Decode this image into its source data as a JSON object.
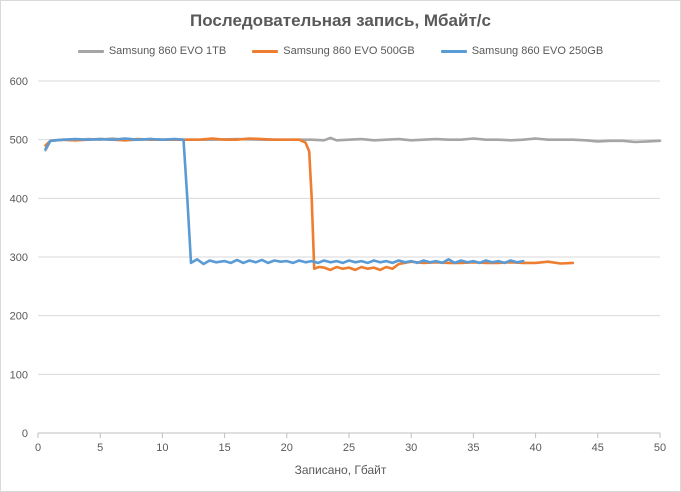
{
  "chart_data": {
    "type": "line",
    "title": "Последовательная запись, Мбайт/с",
    "xlabel": "Записано, Гбайт",
    "ylabel": "",
    "xlim": [
      0,
      50
    ],
    "ylim": [
      0,
      600
    ],
    "x_ticks": [
      0,
      5,
      10,
      15,
      20,
      25,
      30,
      35,
      40,
      45,
      50
    ],
    "y_ticks": [
      0,
      100,
      200,
      300,
      400,
      500,
      600
    ],
    "grid": "horizontal",
    "legend_position": "top",
    "series": [
      {
        "name": "Samsung 860 EVO 1TB",
        "color": "#a5a5a5",
        "points": [
          [
            0.6,
            482
          ],
          [
            1,
            498
          ],
          [
            2,
            500
          ],
          [
            3,
            499
          ],
          [
            4,
            501
          ],
          [
            5,
            500
          ],
          [
            6,
            502
          ],
          [
            7,
            499
          ],
          [
            8,
            500
          ],
          [
            9,
            501
          ],
          [
            10,
            500
          ],
          [
            11,
            500
          ],
          [
            12,
            500
          ],
          [
            14,
            500
          ],
          [
            16,
            501
          ],
          [
            18,
            500
          ],
          [
            20,
            500
          ],
          [
            22,
            500
          ],
          [
            23,
            499
          ],
          [
            23.5,
            503
          ],
          [
            24,
            499
          ],
          [
            25,
            500
          ],
          [
            26,
            501
          ],
          [
            27,
            499
          ],
          [
            28,
            500
          ],
          [
            29,
            501
          ],
          [
            30,
            499
          ],
          [
            31,
            500
          ],
          [
            32,
            501
          ],
          [
            33,
            500
          ],
          [
            34,
            500
          ],
          [
            35,
            502
          ],
          [
            36,
            500
          ],
          [
            37,
            500
          ],
          [
            38,
            499
          ],
          [
            39,
            500
          ],
          [
            40,
            502
          ],
          [
            41,
            500
          ],
          [
            42,
            500
          ],
          [
            43,
            500
          ],
          [
            44,
            499
          ],
          [
            45,
            497
          ],
          [
            46,
            498
          ],
          [
            47,
            498
          ],
          [
            48,
            496
          ],
          [
            49,
            497
          ],
          [
            50,
            498
          ]
        ]
      },
      {
        "name": "Samsung 860 EVO 500GB",
        "color": "#ed7d31",
        "points": [
          [
            0.6,
            490
          ],
          [
            1,
            498
          ],
          [
            2,
            500
          ],
          [
            3,
            499
          ],
          [
            4,
            500
          ],
          [
            5,
            501
          ],
          [
            6,
            500
          ],
          [
            7,
            499
          ],
          [
            8,
            501
          ],
          [
            9,
            500
          ],
          [
            10,
            500
          ],
          [
            11,
            500
          ],
          [
            12,
            500
          ],
          [
            13,
            500
          ],
          [
            14,
            502
          ],
          [
            15,
            500
          ],
          [
            16,
            500
          ],
          [
            17,
            502
          ],
          [
            18,
            501
          ],
          [
            19,
            500
          ],
          [
            20,
            500
          ],
          [
            21,
            500
          ],
          [
            21.5,
            495
          ],
          [
            21.8,
            480
          ],
          [
            22,
            400
          ],
          [
            22.2,
            280
          ],
          [
            22.6,
            283
          ],
          [
            23,
            282
          ],
          [
            23.5,
            278
          ],
          [
            24,
            283
          ],
          [
            24.5,
            280
          ],
          [
            25,
            282
          ],
          [
            25.5,
            278
          ],
          [
            26,
            283
          ],
          [
            26.5,
            280
          ],
          [
            27,
            282
          ],
          [
            27.5,
            278
          ],
          [
            28,
            283
          ],
          [
            28.5,
            280
          ],
          [
            29,
            288
          ],
          [
            29.5,
            290
          ],
          [
            30,
            292
          ],
          [
            31,
            290
          ],
          [
            32,
            291
          ],
          [
            33,
            290
          ],
          [
            34,
            290
          ],
          [
            35,
            291
          ],
          [
            36,
            290
          ],
          [
            37,
            290
          ],
          [
            38,
            291
          ],
          [
            39,
            290
          ],
          [
            40,
            290
          ],
          [
            41,
            292
          ],
          [
            42,
            289
          ],
          [
            43,
            290
          ]
        ]
      },
      {
        "name": "Samsung 860 EVO 250GB",
        "color": "#5b9bd5",
        "points": [
          [
            0.6,
            484
          ],
          [
            1,
            498
          ],
          [
            2,
            500
          ],
          [
            3,
            501
          ],
          [
            4,
            500
          ],
          [
            5,
            501
          ],
          [
            6,
            500
          ],
          [
            7,
            502
          ],
          [
            8,
            500
          ],
          [
            9,
            501
          ],
          [
            10,
            500
          ],
          [
            11,
            501
          ],
          [
            11.7,
            500
          ],
          [
            12,
            400
          ],
          [
            12.3,
            290
          ],
          [
            12.8,
            296
          ],
          [
            13.3,
            288
          ],
          [
            13.8,
            294
          ],
          [
            14.3,
            291
          ],
          [
            15,
            293
          ],
          [
            15.5,
            290
          ],
          [
            16,
            295
          ],
          [
            16.5,
            290
          ],
          [
            17,
            294
          ],
          [
            17.5,
            291
          ],
          [
            18,
            295
          ],
          [
            18.5,
            290
          ],
          [
            19,
            294
          ],
          [
            19.5,
            292
          ],
          [
            20,
            293
          ],
          [
            20.5,
            290
          ],
          [
            21,
            294
          ],
          [
            21.5,
            291
          ],
          [
            22,
            293
          ],
          [
            22.5,
            290
          ],
          [
            23,
            294
          ],
          [
            23.5,
            291
          ],
          [
            24,
            293
          ],
          [
            24.5,
            290
          ],
          [
            25,
            294
          ],
          [
            25.5,
            291
          ],
          [
            26,
            293
          ],
          [
            26.5,
            290
          ],
          [
            27,
            294
          ],
          [
            27.5,
            291
          ],
          [
            28,
            293
          ],
          [
            28.5,
            290
          ],
          [
            29,
            294
          ],
          [
            29.5,
            291
          ],
          [
            30,
            293
          ],
          [
            30.5,
            290
          ],
          [
            31,
            294
          ],
          [
            31.5,
            291
          ],
          [
            32,
            293
          ],
          [
            32.5,
            290
          ],
          [
            33,
            296
          ],
          [
            33.5,
            290
          ],
          [
            34,
            294
          ],
          [
            34.5,
            291
          ],
          [
            35,
            293
          ],
          [
            35.5,
            290
          ],
          [
            36,
            294
          ],
          [
            36.5,
            291
          ],
          [
            37,
            293
          ],
          [
            37.5,
            290
          ],
          [
            38,
            294
          ],
          [
            38.5,
            291
          ],
          [
            39,
            293
          ]
        ]
      }
    ]
  }
}
